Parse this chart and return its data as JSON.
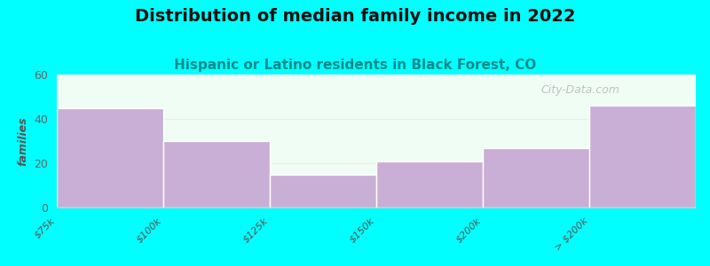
{
  "title": "Distribution of median family income in 2022",
  "subtitle": "Hispanic or Latino residents in Black Forest, CO",
  "xlabel_labels": [
    "$75k",
    "$100k",
    "$125k",
    "$150k",
    "$200k",
    "> $200k"
  ],
  "bar_values": [
    45,
    30,
    15,
    21,
    27,
    46
  ],
  "bar_color": "#c9aed6",
  "plot_bg_color": "#f0fdf4",
  "fig_bg_color": "#00ffff",
  "ylabel": "families",
  "ylim": [
    0,
    60
  ],
  "yticks": [
    0,
    20,
    40,
    60
  ],
  "title_fontsize": 14,
  "subtitle_fontsize": 11,
  "subtitle_color": "#008b8b",
  "ylabel_color": "#555555",
  "watermark_text": "City-Data.com"
}
